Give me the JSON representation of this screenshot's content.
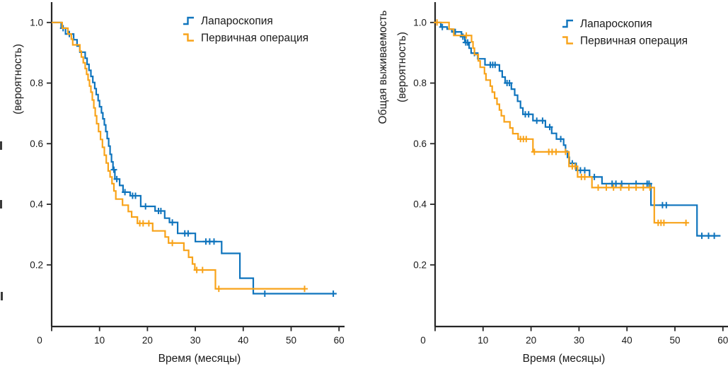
{
  "figure": {
    "background": "#ffffff",
    "description": "Two Kaplan-Meier survival step charts"
  },
  "colors": {
    "laparoscopy": "#0f74bd",
    "primary_surgery": "#f8a31a",
    "axis": "#262626",
    "text": "#1a1a1a"
  },
  "chart_data": [
    {
      "type": "line",
      "subtype": "kaplan-meier-step",
      "panel": "progression-free-survival",
      "title": "",
      "xlabel": "Время (месяцы)",
      "ylabel_lines": [
        "(вероятность)"
      ],
      "ylabel_clipped": true,
      "xlim": [
        0,
        61
      ],
      "ylim": [
        0,
        1.07
      ],
      "xticks": [
        0,
        10,
        20,
        30,
        40,
        50,
        60
      ],
      "xtick_labels": [
        "0",
        "10",
        "20",
        "30",
        "40",
        "50",
        "60"
      ],
      "yticks": [
        0.2,
        0.4,
        0.6,
        0.8,
        1.0
      ],
      "ytick_labels": [
        "0.2",
        "0.4",
        "0.6",
        "0.8",
        "1.0"
      ],
      "grid": false,
      "legend_position": "upper right",
      "series": [
        {
          "name": "Лапароскопия",
          "color": "#0f74bd",
          "marker": "step-up",
          "end": 59.5,
          "points": [
            [
              0,
              1.0
            ],
            [
              2.0,
              0.981
            ],
            [
              2.9,
              0.962
            ],
            [
              4.6,
              0.943
            ],
            [
              5.3,
              0.922
            ],
            [
              5.9,
              0.902
            ],
            [
              7.0,
              0.882
            ],
            [
              7.4,
              0.862
            ],
            [
              7.8,
              0.842
            ],
            [
              8.2,
              0.822
            ],
            [
              8.6,
              0.802
            ],
            [
              9.0,
              0.782
            ],
            [
              9.3,
              0.762
            ],
            [
              9.7,
              0.742
            ],
            [
              10.0,
              0.722
            ],
            [
              10.4,
              0.702
            ],
            [
              10.7,
              0.682
            ],
            [
              11.0,
              0.662
            ],
            [
              11.3,
              0.64
            ],
            [
              11.6,
              0.617
            ],
            [
              11.9,
              0.592
            ],
            [
              12.2,
              0.565
            ],
            [
              12.5,
              0.54
            ],
            [
              12.8,
              0.514
            ],
            [
              13.2,
              0.483
            ],
            [
              14.2,
              0.462
            ],
            [
              14.9,
              0.44
            ],
            [
              16.4,
              0.428
            ],
            [
              18.6,
              0.393
            ],
            [
              21.6,
              0.378
            ],
            [
              23.6,
              0.354
            ],
            [
              24.6,
              0.34
            ],
            [
              26.3,
              0.304
            ],
            [
              30.0,
              0.277
            ],
            [
              35.5,
              0.238
            ],
            [
              39.3,
              0.156
            ],
            [
              42.1,
              0.105
            ]
          ],
          "censors": [
            [
              2.4,
              0.981
            ],
            [
              3.7,
              0.962
            ],
            [
              13.0,
              0.514
            ],
            [
              13.6,
              0.483
            ],
            [
              15.3,
              0.44
            ],
            [
              16.9,
              0.428
            ],
            [
              17.5,
              0.428
            ],
            [
              19.6,
              0.393
            ],
            [
              22.3,
              0.378
            ],
            [
              22.8,
              0.378
            ],
            [
              25.2,
              0.34
            ],
            [
              27.8,
              0.304
            ],
            [
              28.5,
              0.304
            ],
            [
              32.2,
              0.277
            ],
            [
              33.0,
              0.277
            ],
            [
              33.9,
              0.277
            ],
            [
              44.5,
              0.105
            ],
            [
              58.8,
              0.105
            ]
          ]
        },
        {
          "name": "Первичная операция",
          "color": "#f8a31a",
          "marker": "step-down",
          "end": 52.9,
          "points": [
            [
              0,
              1.0
            ],
            [
              2.2,
              0.981
            ],
            [
              3.4,
              0.962
            ],
            [
              4.1,
              0.945
            ],
            [
              4.4,
              0.926
            ],
            [
              5.9,
              0.905
            ],
            [
              6.2,
              0.886
            ],
            [
              6.6,
              0.867
            ],
            [
              7.0,
              0.848
            ],
            [
              7.3,
              0.829
            ],
            [
              7.6,
              0.81
            ],
            [
              7.9,
              0.79
            ],
            [
              8.2,
              0.77
            ],
            [
              8.5,
              0.744
            ],
            [
              8.8,
              0.718
            ],
            [
              9.1,
              0.692
            ],
            [
              9.4,
              0.666
            ],
            [
              9.8,
              0.64
            ],
            [
              10.2,
              0.614
            ],
            [
              10.6,
              0.588
            ],
            [
              11.0,
              0.562
            ],
            [
              11.4,
              0.536
            ],
            [
              11.8,
              0.51
            ],
            [
              12.2,
              0.49
            ],
            [
              12.6,
              0.468
            ],
            [
              13.0,
              0.444
            ],
            [
              13.4,
              0.417
            ],
            [
              14.8,
              0.397
            ],
            [
              16.0,
              0.376
            ],
            [
              16.7,
              0.358
            ],
            [
              17.9,
              0.337
            ],
            [
              21.1,
              0.312
            ],
            [
              23.7,
              0.292
            ],
            [
              24.4,
              0.272
            ],
            [
              27.6,
              0.248
            ],
            [
              28.6,
              0.225
            ],
            [
              29.4,
              0.203
            ],
            [
              29.9,
              0.183
            ],
            [
              34.2,
              0.121
            ]
          ],
          "censors": [
            [
              18.4,
              0.337
            ],
            [
              19.1,
              0.337
            ],
            [
              20.3,
              0.337
            ],
            [
              25.2,
              0.272
            ],
            [
              30.3,
              0.183
            ],
            [
              31.5,
              0.183
            ],
            [
              34.9,
              0.121
            ],
            [
              52.8,
              0.121
            ]
          ]
        }
      ]
    },
    {
      "type": "line",
      "subtype": "kaplan-meier-step",
      "panel": "overall-survival",
      "title": "",
      "xlabel": "Время (месяцы)",
      "ylabel_lines": [
        "Общая выживаемость",
        "(вероятность)"
      ],
      "ylabel_clipped": false,
      "xlim": [
        0,
        61
      ],
      "ylim": [
        0,
        1.07
      ],
      "xticks": [
        0,
        10,
        20,
        30,
        40,
        50,
        60
      ],
      "xtick_labels": [
        "0",
        "10",
        "20",
        "30",
        "40",
        "50",
        "60"
      ],
      "yticks": [
        0.2,
        0.4,
        0.6,
        0.8,
        1.0
      ],
      "ytick_labels": [
        "0.2",
        "0.4",
        "0.6",
        "0.8",
        "1.0"
      ],
      "grid": false,
      "legend_position": "upper right",
      "series": [
        {
          "name": "Лапароскопия",
          "color": "#0f74bd",
          "marker": "step-up",
          "end": 59.5,
          "points": [
            [
              0,
              1.0
            ],
            [
              1.2,
              0.985
            ],
            [
              2.5,
              0.978
            ],
            [
              3.5,
              0.969
            ],
            [
              5.5,
              0.953
            ],
            [
              6.2,
              0.934
            ],
            [
              7.1,
              0.915
            ],
            [
              7.5,
              0.899
            ],
            [
              8.9,
              0.88
            ],
            [
              10.4,
              0.86
            ],
            [
              13.4,
              0.84
            ],
            [
              14.0,
              0.82
            ],
            [
              14.6,
              0.8
            ],
            [
              15.9,
              0.78
            ],
            [
              16.6,
              0.76
            ],
            [
              17.2,
              0.74
            ],
            [
              17.8,
              0.718
            ],
            [
              18.3,
              0.697
            ],
            [
              20.4,
              0.676
            ],
            [
              23.0,
              0.655
            ],
            [
              24.3,
              0.634
            ],
            [
              25.3,
              0.615
            ],
            [
              26.8,
              0.595
            ],
            [
              27.2,
              0.575
            ],
            [
              27.6,
              0.555
            ],
            [
              28.0,
              0.535
            ],
            [
              29.4,
              0.512
            ],
            [
              32.2,
              0.49
            ],
            [
              34.8,
              0.468
            ],
            [
              45.0,
              0.397
            ],
            [
              54.6,
              0.296
            ]
          ],
          "censors": [
            [
              1.5,
              0.985
            ],
            [
              4.2,
              0.969
            ],
            [
              5.8,
              0.953
            ],
            [
              6.4,
              0.934
            ],
            [
              6.8,
              0.934
            ],
            [
              8.2,
              0.899
            ],
            [
              11.5,
              0.86
            ],
            [
              12.0,
              0.86
            ],
            [
              12.5,
              0.86
            ],
            [
              15.0,
              0.8
            ],
            [
              15.5,
              0.8
            ],
            [
              18.8,
              0.697
            ],
            [
              19.5,
              0.697
            ],
            [
              21.2,
              0.676
            ],
            [
              22.4,
              0.676
            ],
            [
              23.9,
              0.655
            ],
            [
              26.2,
              0.615
            ],
            [
              28.6,
              0.535
            ],
            [
              30.3,
              0.512
            ],
            [
              31.2,
              0.512
            ],
            [
              33.2,
              0.49
            ],
            [
              36.9,
              0.468
            ],
            [
              37.7,
              0.468
            ],
            [
              38.9,
              0.468
            ],
            [
              41.9,
              0.468
            ],
            [
              44.2,
              0.468
            ],
            [
              44.6,
              0.468
            ],
            [
              47.4,
              0.397
            ],
            [
              48.2,
              0.397
            ],
            [
              55.6,
              0.296
            ],
            [
              57.0,
              0.296
            ],
            [
              58.2,
              0.296
            ]
          ]
        },
        {
          "name": "Первичная операция",
          "color": "#f8a31a",
          "marker": "step-down",
          "end": 52.6,
          "points": [
            [
              0,
              1.0
            ],
            [
              2.9,
              0.978
            ],
            [
              3.9,
              0.957
            ],
            [
              7.6,
              0.936
            ],
            [
              7.9,
              0.915
            ],
            [
              8.2,
              0.894
            ],
            [
              9.0,
              0.873
            ],
            [
              9.4,
              0.852
            ],
            [
              10.3,
              0.831
            ],
            [
              10.6,
              0.81
            ],
            [
              11.5,
              0.79
            ],
            [
              11.9,
              0.77
            ],
            [
              12.4,
              0.75
            ],
            [
              12.9,
              0.73
            ],
            [
              13.4,
              0.711
            ],
            [
              13.8,
              0.692
            ],
            [
              14.4,
              0.672
            ],
            [
              15.6,
              0.652
            ],
            [
              16.2,
              0.633
            ],
            [
              17.3,
              0.615
            ],
            [
              20.4,
              0.573
            ],
            [
              27.9,
              0.525
            ],
            [
              29.7,
              0.49
            ],
            [
              32.7,
              0.455
            ],
            [
              45.7,
              0.339
            ]
          ],
          "censors": [
            [
              0.4,
              1.0
            ],
            [
              6.5,
              0.957
            ],
            [
              17.8,
              0.615
            ],
            [
              18.4,
              0.615
            ],
            [
              19.0,
              0.615
            ],
            [
              20.7,
              0.573
            ],
            [
              23.7,
              0.573
            ],
            [
              24.4,
              0.573
            ],
            [
              25.2,
              0.573
            ],
            [
              27.2,
              0.573
            ],
            [
              28.6,
              0.525
            ],
            [
              29.2,
              0.525
            ],
            [
              30.5,
              0.49
            ],
            [
              31.2,
              0.49
            ],
            [
              34.0,
              0.455
            ],
            [
              35.7,
              0.455
            ],
            [
              37.2,
              0.455
            ],
            [
              38.7,
              0.455
            ],
            [
              40.4,
              0.455
            ],
            [
              41.9,
              0.455
            ],
            [
              43.4,
              0.455
            ],
            [
              44.8,
              0.455
            ],
            [
              46.5,
              0.339
            ],
            [
              47.1,
              0.339
            ],
            [
              47.7,
              0.339
            ],
            [
              52.3,
              0.339
            ]
          ]
        }
      ]
    }
  ]
}
